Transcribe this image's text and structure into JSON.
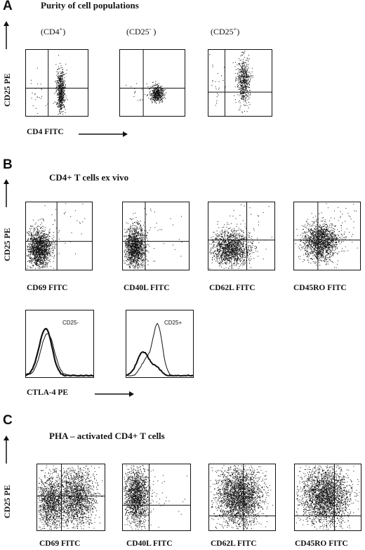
{
  "panels": {
    "A": {
      "letter": "A",
      "title": "Purity of cell populations",
      "y_label": "CD25 PE",
      "x_label": "CD4 FITC",
      "plots": [
        {
          "label": "(CD4",
          "sup": "+",
          "close": ")"
        },
        {
          "label": "(CD25",
          "sup": "-",
          "close": " )"
        },
        {
          "label": "(CD25",
          "sup": "+",
          "close": ")"
        }
      ]
    },
    "B": {
      "letter": "B",
      "title": "CD4+ T cells ex vivo",
      "y_label": "CD25 PE",
      "x_labels": [
        "CD69 FITC",
        "CD40L FITC",
        "CD62L FITC",
        "CD45RO FITC"
      ],
      "hist_labels": [
        "CD25-",
        "CD25+"
      ],
      "hist_x_label": "CTLA-4 PE"
    },
    "C": {
      "letter": "C",
      "title": "PHA – activated CD4+ T cells",
      "y_label": "CD25 PE",
      "x_labels": [
        "CD69 FITC",
        "CD40L FITC",
        "CD62L FITC",
        "CD45RO FITC"
      ]
    }
  }
}
